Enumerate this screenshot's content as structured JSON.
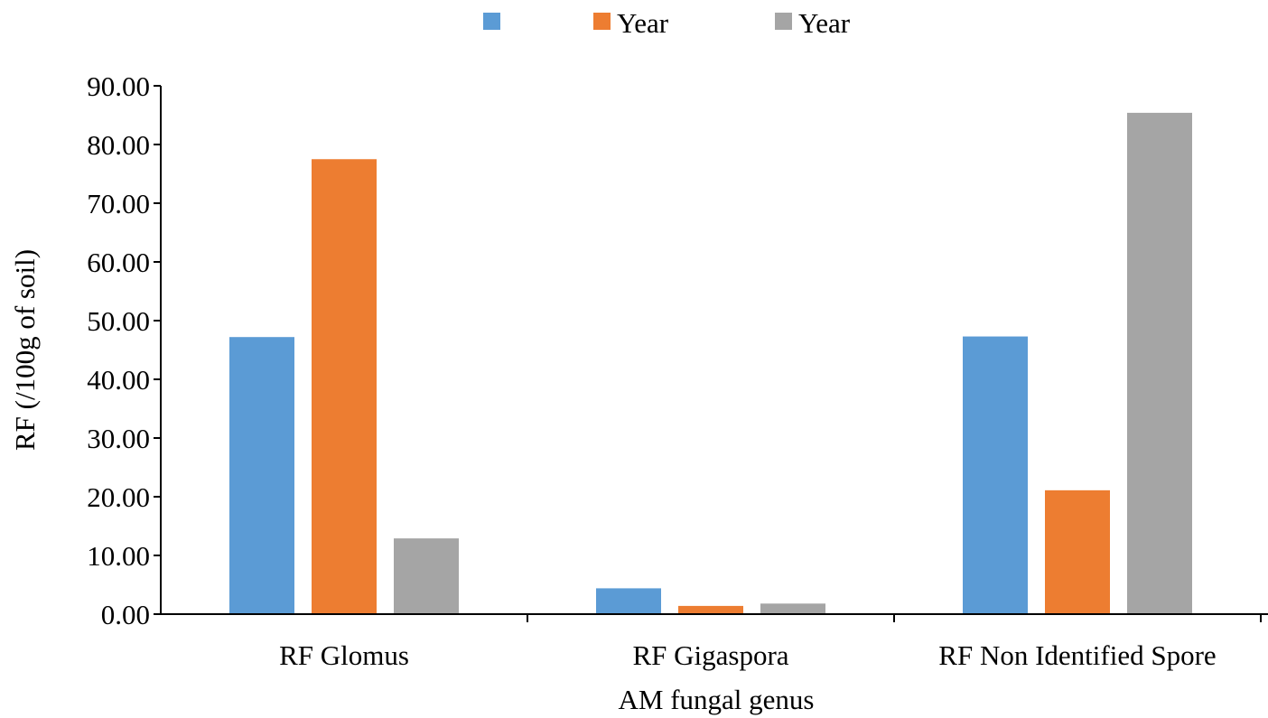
{
  "chart_data": {
    "type": "bar",
    "title": "",
    "xlabel": "AM fungal genus",
    "ylabel": "RF (/100g of soil)",
    "categories": [
      "RF Glomus",
      "RF Gigaspora",
      "RF Non Identified Spore"
    ],
    "series": [
      {
        "name": "",
        "color": "#5b9bd5",
        "values": [
          47.2,
          4.4,
          47.3
        ]
      },
      {
        "name": "Year",
        "color": "#ed7d31",
        "values": [
          77.5,
          1.4,
          21.1
        ]
      },
      {
        "name": "Year",
        "color": "#a5a5a5",
        "values": [
          12.9,
          1.8,
          85.4
        ]
      }
    ],
    "ylim": [
      0,
      90
    ],
    "yticks": [
      "0.00",
      "10.00",
      "20.00",
      "30.00",
      "40.00",
      "50.00",
      "60.00",
      "70.00",
      "80.00",
      "90.00"
    ],
    "legend_position": "top-center",
    "grid": false
  }
}
